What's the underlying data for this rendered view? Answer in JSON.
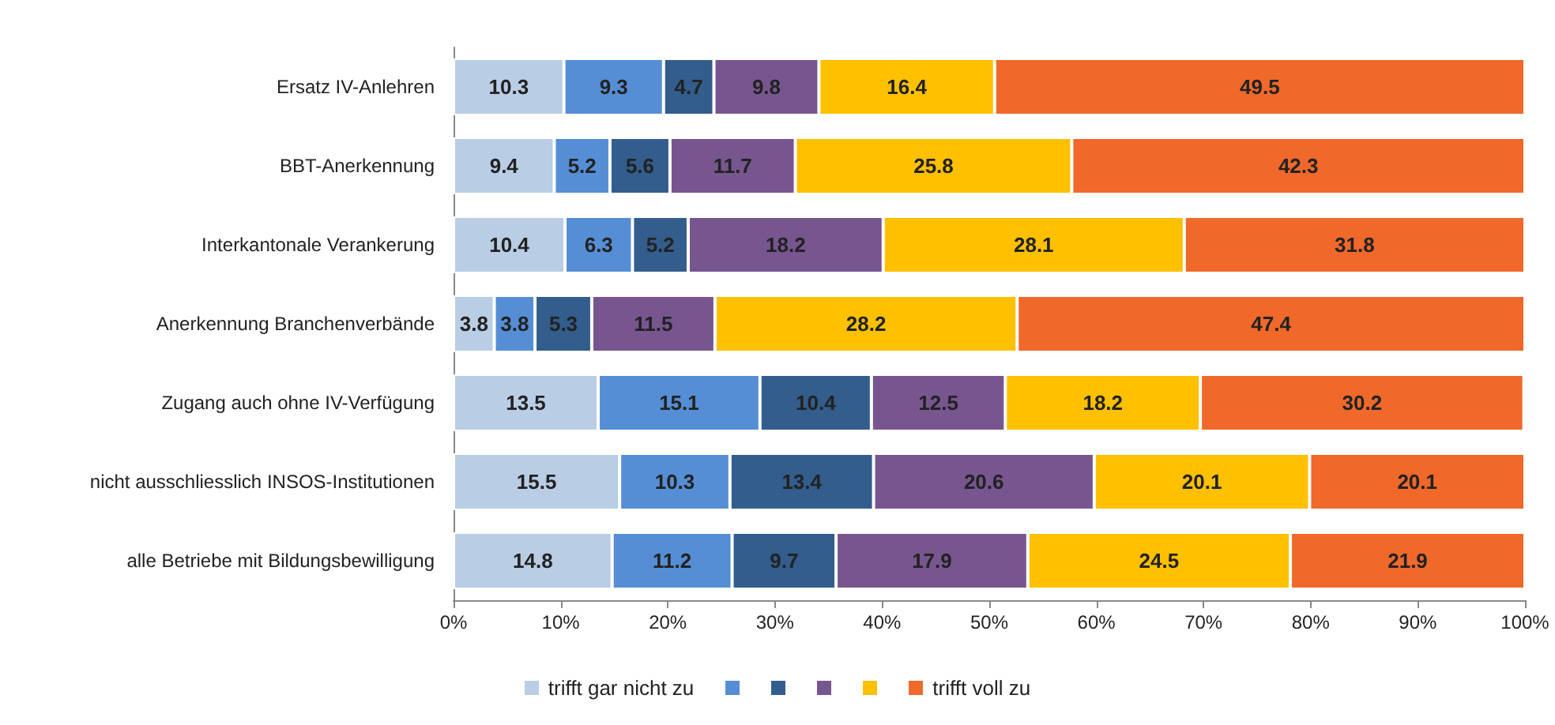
{
  "chart_data": {
    "type": "bar",
    "orientation": "horizontal",
    "stacked": true,
    "data_labels": true,
    "grid": false,
    "legend": "bottom",
    "categories": [
      "Ersatz IV-Anlehren",
      "BBT-Anerkennung",
      "Interkantonale Verankerung",
      "Anerkennung Branchenverbände",
      "Zugang auch ohne IV-Verfügung",
      "nicht ausschliesslich INSOS-Institutionen",
      "alle Betriebe mit Bildungsbewilligung"
    ],
    "xlim": [
      0,
      100
    ],
    "xticks": [
      {
        "value": 0,
        "label": "0%"
      },
      {
        "value": 10,
        "label": "10%"
      },
      {
        "value": 20,
        "label": "20%"
      },
      {
        "value": 30,
        "label": "30%"
      },
      {
        "value": 40,
        "label": "40%"
      },
      {
        "value": 50,
        "label": "50%"
      },
      {
        "value": 60,
        "label": "60%"
      },
      {
        "value": 70,
        "label": "70%"
      },
      {
        "value": 80,
        "label": "80%"
      },
      {
        "value": 90,
        "label": "90%"
      },
      {
        "value": 100,
        "label": "100%"
      }
    ],
    "series": [
      {
        "name": "trifft gar nicht zu",
        "color": "#b9cde5",
        "values": [
          10.3,
          9.4,
          10.4,
          3.8,
          13.5,
          15.5,
          14.8
        ]
      },
      {
        "color": "#558ed5",
        "values": [
          9.3,
          5.2,
          6.3,
          3.8,
          15.1,
          10.3,
          11.2
        ]
      },
      {
        "color": "#325d8c",
        "values": [
          4.7,
          5.6,
          5.2,
          5.3,
          10.4,
          13.4,
          9.7
        ]
      },
      {
        "color": "#77568f",
        "values": [
          9.8,
          11.7,
          18.2,
          11.5,
          12.5,
          20.6,
          17.9
        ]
      },
      {
        "color": "#ffc000",
        "values": [
          16.4,
          25.8,
          28.1,
          28.2,
          18.2,
          20.1,
          24.5
        ]
      },
      {
        "name": "trifft voll zu",
        "color": "#f0692a",
        "values": [
          49.5,
          42.3,
          31.8,
          47.4,
          30.2,
          20.1,
          21.9
        ]
      }
    ]
  }
}
